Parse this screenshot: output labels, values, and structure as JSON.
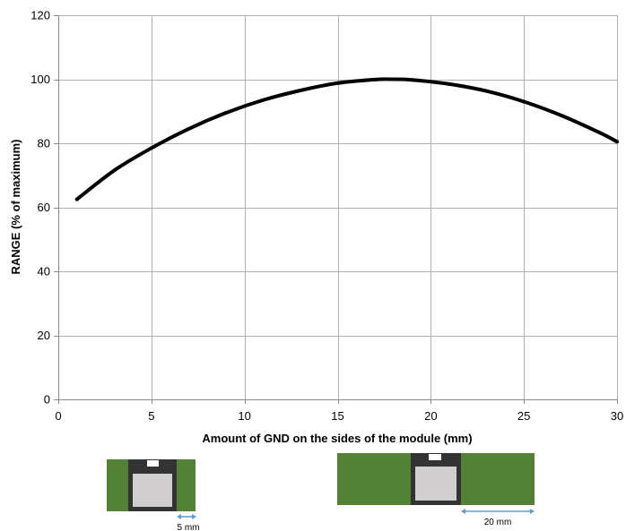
{
  "chart_data": {
    "type": "line",
    "xlabel": "Amount of GND on the sides of the module (mm)",
    "ylabel": "RANGE (% of maximum)",
    "xlim": [
      0,
      30
    ],
    "ylim": [
      0,
      120
    ],
    "xticks": [
      0,
      5,
      10,
      15,
      20,
      25,
      30
    ],
    "yticks": [
      0,
      20,
      40,
      60,
      80,
      100,
      120
    ],
    "grid": true,
    "series": [
      {
        "x": [
          1,
          3,
          5,
          7,
          9,
          11,
          13,
          15,
          17,
          18,
          19,
          21,
          23,
          25,
          27,
          29,
          30
        ],
        "values": [
          62.5,
          71.5,
          78.5,
          84.5,
          89.5,
          93.5,
          96.5,
          98.8,
          99.9,
          100,
          99.8,
          98.5,
          96.3,
          93.0,
          88.7,
          83.5,
          80.5
        ]
      }
    ],
    "color": "#000000"
  },
  "diagrams": [
    {
      "label": "5 mm",
      "board_color": "#538135",
      "module_color": "#333333",
      "chip_color": "#d0cece",
      "arrow_color": "#5b9bd5"
    },
    {
      "label": "20 mm",
      "board_color": "#538135",
      "module_color": "#333333",
      "chip_color": "#d0cece",
      "arrow_color": "#5b9bd5"
    }
  ]
}
